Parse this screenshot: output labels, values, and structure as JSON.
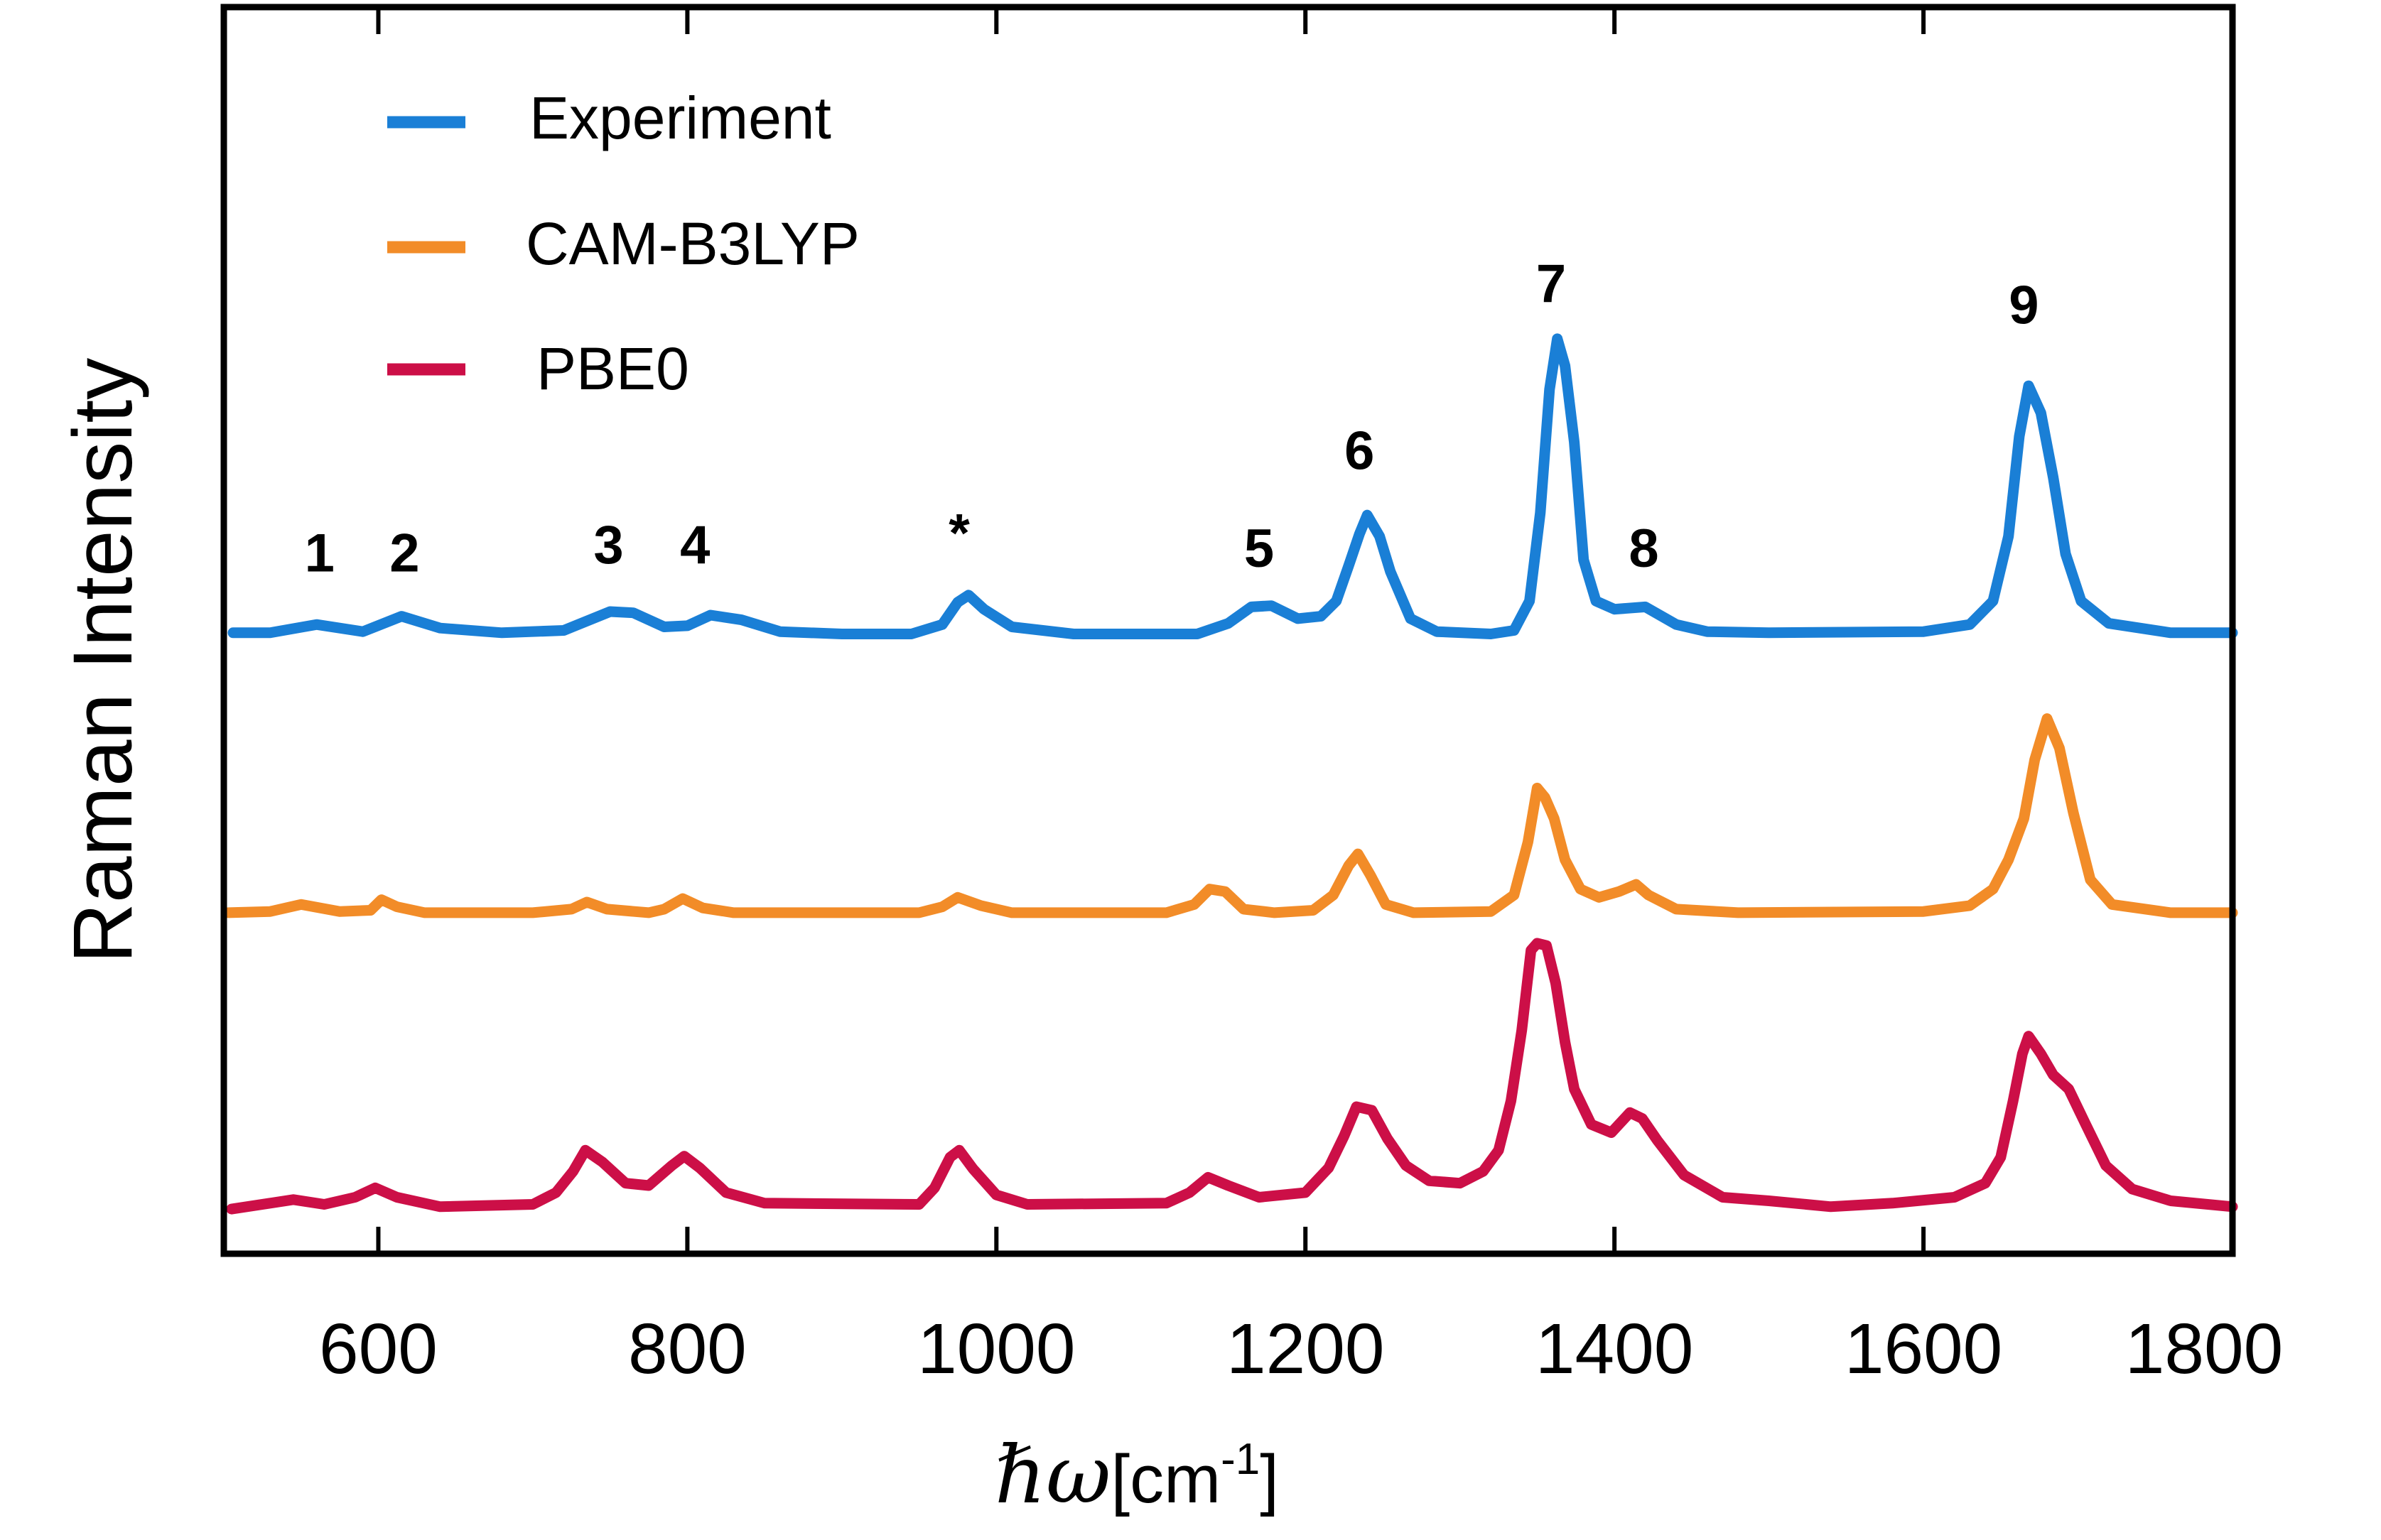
{
  "chart_data": {
    "type": "line",
    "title": "",
    "xlabel_symbol": "ℏω",
    "xlabel_unit": "[cm",
    "xlabel_sup": "-1",
    "xlabel_close": "]",
    "ylabel": "Raman Intensity",
    "xlim": [
      500,
      1800
    ],
    "ylim": [
      0,
      10.6
    ],
    "xticks": [
      600,
      800,
      1000,
      1200,
      1400,
      1600,
      1800
    ],
    "xtick_labels": [
      "600",
      "800",
      "1000",
      "1200",
      "1400",
      "1600",
      "1800"
    ],
    "yticks_shown": false,
    "grid": false,
    "legend_position": "top-left",
    "series": [
      {
        "name": "Experiment",
        "color": "#1a7fd6",
        "points": [
          [
            506,
            5.28
          ],
          [
            530,
            5.28
          ],
          [
            560,
            5.35
          ],
          [
            590,
            5.29
          ],
          [
            615,
            5.42
          ],
          [
            640,
            5.32
          ],
          [
            680,
            5.28
          ],
          [
            720,
            5.3
          ],
          [
            750,
            5.46
          ],
          [
            765,
            5.45
          ],
          [
            785,
            5.33
          ],
          [
            800,
            5.34
          ],
          [
            815,
            5.43
          ],
          [
            835,
            5.39
          ],
          [
            860,
            5.29
          ],
          [
            900,
            5.27
          ],
          [
            945,
            5.27
          ],
          [
            965,
            5.35
          ],
          [
            975,
            5.54
          ],
          [
            982,
            5.6
          ],
          [
            992,
            5.48
          ],
          [
            1010,
            5.33
          ],
          [
            1050,
            5.27
          ],
          [
            1130,
            5.27
          ],
          [
            1150,
            5.36
          ],
          [
            1165,
            5.5
          ],
          [
            1178,
            5.51
          ],
          [
            1195,
            5.4
          ],
          [
            1210,
            5.42
          ],
          [
            1220,
            5.55
          ],
          [
            1228,
            5.85
          ],
          [
            1235,
            6.12
          ],
          [
            1240,
            6.28
          ],
          [
            1248,
            6.1
          ],
          [
            1255,
            5.8
          ],
          [
            1268,
            5.4
          ],
          [
            1285,
            5.29
          ],
          [
            1320,
            5.27
          ],
          [
            1335,
            5.3
          ],
          [
            1345,
            5.55
          ],
          [
            1352,
            6.3
          ],
          [
            1358,
            7.35
          ],
          [
            1363,
            7.78
          ],
          [
            1368,
            7.55
          ],
          [
            1374,
            6.9
          ],
          [
            1380,
            5.9
          ],
          [
            1388,
            5.55
          ],
          [
            1400,
            5.48
          ],
          [
            1420,
            5.5
          ],
          [
            1440,
            5.35
          ],
          [
            1460,
            5.29
          ],
          [
            1500,
            5.28
          ],
          [
            1600,
            5.29
          ],
          [
            1630,
            5.35
          ],
          [
            1645,
            5.55
          ],
          [
            1655,
            6.1
          ],
          [
            1662,
            6.95
          ],
          [
            1668,
            7.38
          ],
          [
            1676,
            7.15
          ],
          [
            1684,
            6.6
          ],
          [
            1692,
            5.95
          ],
          [
            1702,
            5.55
          ],
          [
            1720,
            5.36
          ],
          [
            1760,
            5.28
          ],
          [
            1800,
            5.28
          ]
        ]
      },
      {
        "name": "CAM-B3LYP",
        "color": "#f28c28",
        "points": [
          [
            503,
            2.9
          ],
          [
            530,
            2.91
          ],
          [
            550,
            2.97
          ],
          [
            575,
            2.91
          ],
          [
            595,
            2.92
          ],
          [
            602,
            3.01
          ],
          [
            612,
            2.95
          ],
          [
            630,
            2.9
          ],
          [
            700,
            2.9
          ],
          [
            725,
            2.93
          ],
          [
            735,
            2.99
          ],
          [
            748,
            2.93
          ],
          [
            775,
            2.9
          ],
          [
            785,
            2.93
          ],
          [
            797,
            3.02
          ],
          [
            810,
            2.94
          ],
          [
            830,
            2.9
          ],
          [
            950,
            2.9
          ],
          [
            965,
            2.95
          ],
          [
            975,
            3.03
          ],
          [
            990,
            2.96
          ],
          [
            1010,
            2.9
          ],
          [
            1110,
            2.9
          ],
          [
            1128,
            2.97
          ],
          [
            1138,
            3.1
          ],
          [
            1148,
            3.08
          ],
          [
            1160,
            2.93
          ],
          [
            1180,
            2.9
          ],
          [
            1205,
            2.92
          ],
          [
            1218,
            3.05
          ],
          [
            1228,
            3.3
          ],
          [
            1234,
            3.4
          ],
          [
            1242,
            3.22
          ],
          [
            1252,
            2.97
          ],
          [
            1270,
            2.9
          ],
          [
            1320,
            2.91
          ],
          [
            1335,
            3.05
          ],
          [
            1344,
            3.5
          ],
          [
            1350,
            3.96
          ],
          [
            1355,
            3.88
          ],
          [
            1361,
            3.7
          ],
          [
            1368,
            3.35
          ],
          [
            1378,
            3.1
          ],
          [
            1390,
            3.03
          ],
          [
            1403,
            3.08
          ],
          [
            1414,
            3.14
          ],
          [
            1422,
            3.05
          ],
          [
            1440,
            2.93
          ],
          [
            1480,
            2.9
          ],
          [
            1600,
            2.91
          ],
          [
            1630,
            2.96
          ],
          [
            1645,
            3.1
          ],
          [
            1655,
            3.35
          ],
          [
            1665,
            3.7
          ],
          [
            1672,
            4.2
          ],
          [
            1680,
            4.55
          ],
          [
            1688,
            4.3
          ],
          [
            1697,
            3.75
          ],
          [
            1708,
            3.18
          ],
          [
            1722,
            2.97
          ],
          [
            1760,
            2.9
          ],
          [
            1800,
            2.9
          ]
        ]
      },
      {
        "name": "PBE0",
        "color": "#cc0f47",
        "points": [
          [
            505,
            0.38
          ],
          [
            530,
            0.43
          ],
          [
            545,
            0.46
          ],
          [
            565,
            0.42
          ],
          [
            585,
            0.48
          ],
          [
            598,
            0.56
          ],
          [
            612,
            0.48
          ],
          [
            640,
            0.4
          ],
          [
            700,
            0.42
          ],
          [
            715,
            0.52
          ],
          [
            726,
            0.7
          ],
          [
            734,
            0.88
          ],
          [
            745,
            0.78
          ],
          [
            760,
            0.6
          ],
          [
            775,
            0.58
          ],
          [
            790,
            0.75
          ],
          [
            798,
            0.83
          ],
          [
            808,
            0.73
          ],
          [
            825,
            0.52
          ],
          [
            850,
            0.43
          ],
          [
            950,
            0.42
          ],
          [
            960,
            0.56
          ],
          [
            970,
            0.82
          ],
          [
            976,
            0.88
          ],
          [
            985,
            0.72
          ],
          [
            1000,
            0.5
          ],
          [
            1020,
            0.42
          ],
          [
            1110,
            0.43
          ],
          [
            1125,
            0.52
          ],
          [
            1137,
            0.65
          ],
          [
            1150,
            0.58
          ],
          [
            1170,
            0.48
          ],
          [
            1200,
            0.52
          ],
          [
            1215,
            0.73
          ],
          [
            1225,
            1.0
          ],
          [
            1233,
            1.25
          ],
          [
            1243,
            1.22
          ],
          [
            1253,
            0.98
          ],
          [
            1265,
            0.75
          ],
          [
            1280,
            0.62
          ],
          [
            1300,
            0.6
          ],
          [
            1315,
            0.7
          ],
          [
            1325,
            0.88
          ],
          [
            1333,
            1.3
          ],
          [
            1340,
            1.9
          ],
          [
            1346,
            2.58
          ],
          [
            1350,
            2.64
          ],
          [
            1356,
            2.62
          ],
          [
            1362,
            2.3
          ],
          [
            1368,
            1.8
          ],
          [
            1374,
            1.4
          ],
          [
            1385,
            1.1
          ],
          [
            1398,
            1.03
          ],
          [
            1410,
            1.2
          ],
          [
            1418,
            1.15
          ],
          [
            1428,
            0.96
          ],
          [
            1445,
            0.67
          ],
          [
            1470,
            0.48
          ],
          [
            1500,
            0.45
          ],
          [
            1540,
            0.4
          ],
          [
            1580,
            0.43
          ],
          [
            1620,
            0.48
          ],
          [
            1640,
            0.6
          ],
          [
            1650,
            0.82
          ],
          [
            1658,
            1.3
          ],
          [
            1664,
            1.7
          ],
          [
            1668,
            1.85
          ],
          [
            1676,
            1.7
          ],
          [
            1684,
            1.52
          ],
          [
            1694,
            1.4
          ],
          [
            1705,
            1.1
          ],
          [
            1718,
            0.75
          ],
          [
            1735,
            0.55
          ],
          [
            1760,
            0.45
          ],
          [
            1800,
            0.4
          ]
        ]
      }
    ],
    "annotations": [
      {
        "text": "1",
        "x": 562,
        "y": 5.8
      },
      {
        "text": "2",
        "x": 617,
        "y": 5.8
      },
      {
        "text": "3",
        "x": 749,
        "y": 5.87
      },
      {
        "text": "4",
        "x": 805,
        "y": 5.87
      },
      {
        "text": "*",
        "x": 976,
        "y": 5.97
      },
      {
        "text": "5",
        "x": 1170,
        "y": 5.84
      },
      {
        "text": "6",
        "x": 1235,
        "y": 6.67
      },
      {
        "text": "7",
        "x": 1359,
        "y": 8.09
      },
      {
        "text": "8",
        "x": 1419,
        "y": 5.84
      },
      {
        "text": "9",
        "x": 1665,
        "y": 7.91
      }
    ]
  }
}
